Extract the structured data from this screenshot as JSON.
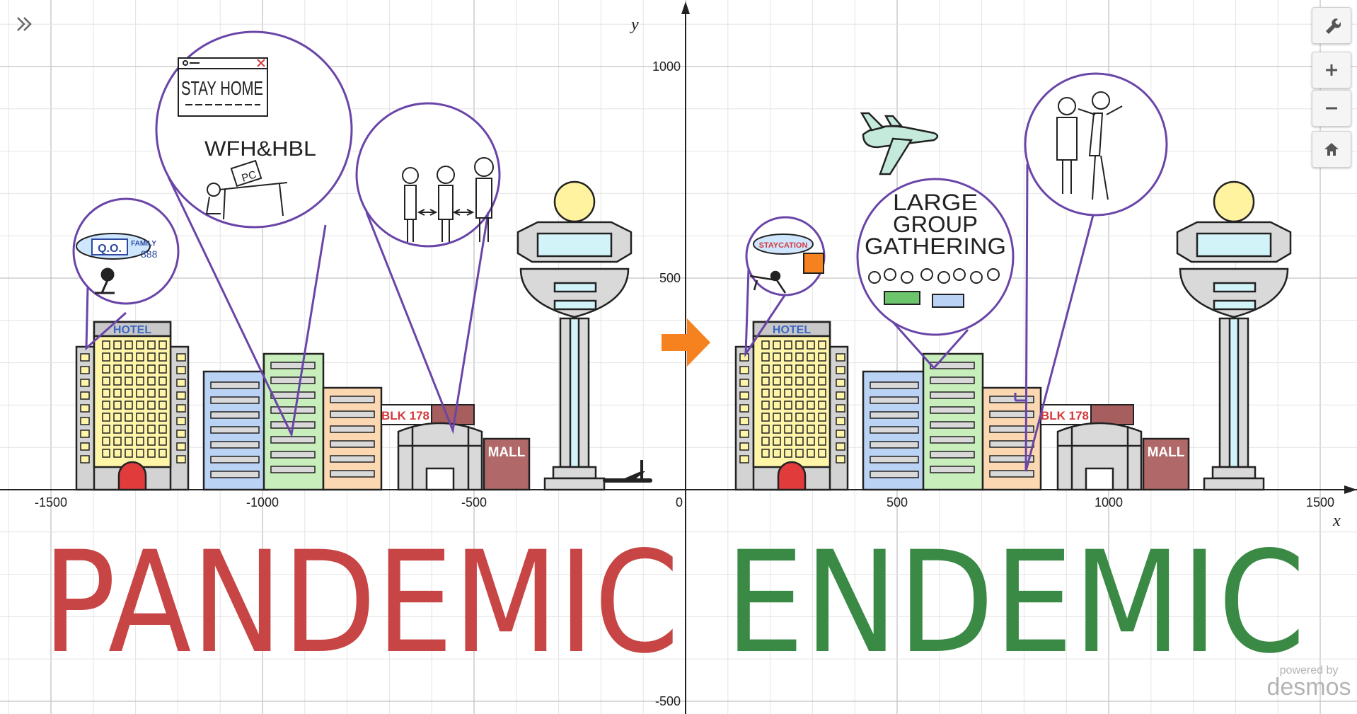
{
  "graph": {
    "x_axis_label": "x",
    "y_axis_label": "y",
    "x_tick_labels": [
      "-1500",
      "-1000",
      "-500",
      "0",
      "500",
      "1000",
      "1500"
    ],
    "y_tick_labels": [
      "1000",
      "500",
      "-500"
    ]
  },
  "scene": {
    "left_word": "PANDEMIC",
    "right_word": "ENDEMIC",
    "hotel_sign": "HOTEL",
    "blk_sign": "BLK 178",
    "mall_sign": "MALL",
    "callouts_left": {
      "window_text": "STAY HOME",
      "wfh_text": "WFH&HBL",
      "pc_text": "PC",
      "thought_text": "Q.O.",
      "family_text": "FAMILY"
    },
    "callouts_right": {
      "staycation_text": "STAYCATION",
      "gathering_text": [
        "LARGE",
        "GROUP",
        "GATHERING"
      ]
    },
    "colors": {
      "pandemic_red": "#c84545",
      "endemic_green": "#3a8a46",
      "callout_purple": "#6a45a8",
      "arrow_orange": "#f5821f",
      "tower_yellow": "#fff3a0",
      "glass_cyan": "#d2f4f8"
    }
  },
  "controls": {
    "expand_icon": "double-chevron-right-icon",
    "settings_icon": "wrench-icon",
    "zoom_in_icon": "plus-icon",
    "zoom_out_icon": "minus-icon",
    "home_icon": "home-icon"
  },
  "branding": {
    "line1": "powered by",
    "line2": "desmos"
  }
}
